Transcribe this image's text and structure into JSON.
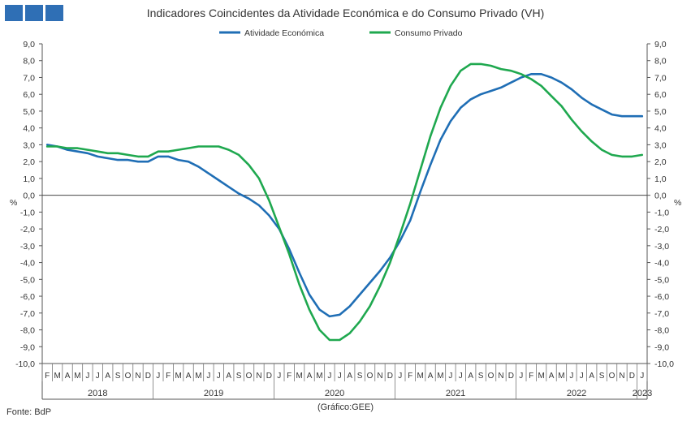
{
  "header": {
    "title": "Indicadores Coincidentes da Atividade Económica e do Consumo Privado (VH)"
  },
  "footer": {
    "source": "Fonte: BdP",
    "note": "(Gráfico:GEE)"
  },
  "chart_data": {
    "type": "line",
    "title": "Indicadores Coincidentes da Atividade Económica e do Consumo Privado (VH)",
    "ylabel_left": "%",
    "ylabel_right": "%",
    "ylim": [
      -10,
      9
    ],
    "ytick_step": 1,
    "ytick_labels": [
      "9,0",
      "8,0",
      "7,0",
      "6,0",
      "5,0",
      "4,0",
      "3,0",
      "2,0",
      "1,0",
      "0,0",
      "-1,0",
      "-2,0",
      "-3,0",
      "-4,0",
      "-5,0",
      "-6,0",
      "-7,0",
      "-8,0",
      "-9,0",
      "-10,0"
    ],
    "grid": false,
    "legend_position": "top-center",
    "month_labels": [
      "F",
      "M",
      "A",
      "M",
      "J",
      "J",
      "A",
      "S",
      "O",
      "N",
      "D",
      "J",
      "F",
      "M",
      "A",
      "M",
      "J",
      "J",
      "A",
      "S",
      "O",
      "N",
      "D",
      "J",
      "F",
      "M",
      "A",
      "M",
      "J",
      "J",
      "A",
      "S",
      "O",
      "N",
      "D",
      "J",
      "F",
      "M",
      "A",
      "M",
      "J",
      "J",
      "A",
      "S",
      "O",
      "N",
      "D",
      "J",
      "F",
      "M",
      "A",
      "M",
      "J",
      "J",
      "A",
      "S",
      "O",
      "N",
      "D",
      "J"
    ],
    "year_labels": [
      "2018",
      "2019",
      "2020",
      "2021",
      "2022",
      "2023"
    ],
    "x_start": "2018-02",
    "x_end": "2023-01",
    "series": [
      {
        "name": "Atividade Económica",
        "color": "#1f6eb5",
        "values": [
          3.0,
          2.9,
          2.7,
          2.6,
          2.5,
          2.3,
          2.2,
          2.1,
          2.1,
          2.0,
          2.0,
          2.3,
          2.3,
          2.1,
          2.0,
          1.7,
          1.3,
          0.9,
          0.5,
          0.1,
          -0.2,
          -0.6,
          -1.2,
          -2.0,
          -3.2,
          -4.6,
          -5.9,
          -6.8,
          -7.2,
          -7.1,
          -6.6,
          -5.9,
          -5.2,
          -4.5,
          -3.7,
          -2.7,
          -1.5,
          0.2,
          1.8,
          3.3,
          4.4,
          5.2,
          5.7,
          6.0,
          6.2,
          6.4,
          6.7,
          7.0,
          7.2,
          7.2,
          7.0,
          6.7,
          6.3,
          5.8,
          5.4,
          5.1,
          4.8,
          4.7,
          4.7,
          4.7
        ]
      },
      {
        "name": "Consumo Privado",
        "color": "#1fa84f",
        "values": [
          2.9,
          2.9,
          2.8,
          2.8,
          2.7,
          2.6,
          2.5,
          2.5,
          2.4,
          2.3,
          2.3,
          2.6,
          2.6,
          2.7,
          2.8,
          2.9,
          2.9,
          2.9,
          2.7,
          2.4,
          1.8,
          1.0,
          -0.3,
          -1.9,
          -3.5,
          -5.3,
          -6.8,
          -8.0,
          -8.6,
          -8.6,
          -8.2,
          -7.5,
          -6.6,
          -5.4,
          -4.0,
          -2.3,
          -0.5,
          1.5,
          3.5,
          5.2,
          6.5,
          7.4,
          7.8,
          7.8,
          7.7,
          7.5,
          7.4,
          7.2,
          6.9,
          6.5,
          5.9,
          5.3,
          4.5,
          3.8,
          3.2,
          2.7,
          2.4,
          2.3,
          2.3,
          2.4
        ]
      }
    ]
  }
}
